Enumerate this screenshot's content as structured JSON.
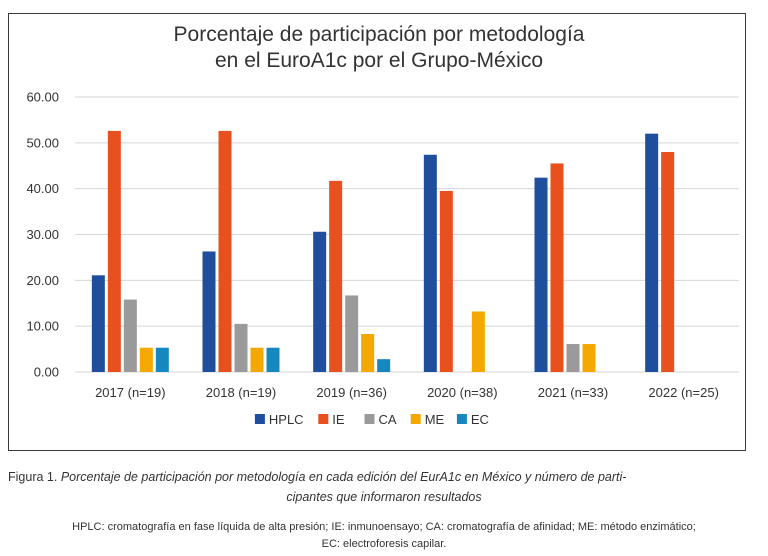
{
  "figure": {
    "caption_prefix": "Figura 1.",
    "caption_line1": "Porcentaje de participación por metodología en cada edición del EurA1c en México y número de parti-",
    "caption_line2": "cipantes que informaron resultados",
    "footnote_line1": "HPLC: cromatografía en fase líquida de alta presión; IE: inmunoensayo; CA: cromatografía de afinidad; ME: método enzimático;",
    "footnote_line2": "EC: electroforesis capilar."
  },
  "chart_data": {
    "type": "bar",
    "title_lines": [
      "Porcentaje de participación por metodología",
      "en el EuroA1c por el Grupo-México"
    ],
    "xlabel": "",
    "ylabel": "",
    "ylim": [
      0,
      60
    ],
    "yticks": [
      0,
      10,
      20,
      30,
      40,
      50,
      60
    ],
    "ytick_labels": [
      "0.00",
      "10.00",
      "20.00",
      "30.00",
      "40.00",
      "50.00",
      "60.00"
    ],
    "grid": true,
    "legend_position": "bottom",
    "categories": [
      "2017 (n=19)",
      "2018 (n=19)",
      "2019 (n=36)",
      "2020 (n=38)",
      "2021 (n=33)",
      "2022 (n=25)"
    ],
    "series": [
      {
        "name": "HPLC",
        "color": "#1f4e9c",
        "values": [
          21.1,
          26.3,
          30.6,
          47.4,
          42.4,
          52.0
        ]
      },
      {
        "name": "IE",
        "color": "#e8501e",
        "values": [
          52.6,
          52.6,
          41.7,
          39.5,
          45.5,
          48.0
        ]
      },
      {
        "name": "CA",
        "color": "#9a9a9a",
        "values": [
          15.8,
          10.5,
          16.7,
          0,
          6.1,
          0
        ]
      },
      {
        "name": "ME",
        "color": "#f5a800",
        "values": [
          5.3,
          5.3,
          8.3,
          13.2,
          6.1,
          0
        ]
      },
      {
        "name": "EC",
        "color": "#1688c0",
        "values": [
          5.3,
          5.3,
          2.8,
          0,
          0,
          0
        ]
      }
    ]
  }
}
